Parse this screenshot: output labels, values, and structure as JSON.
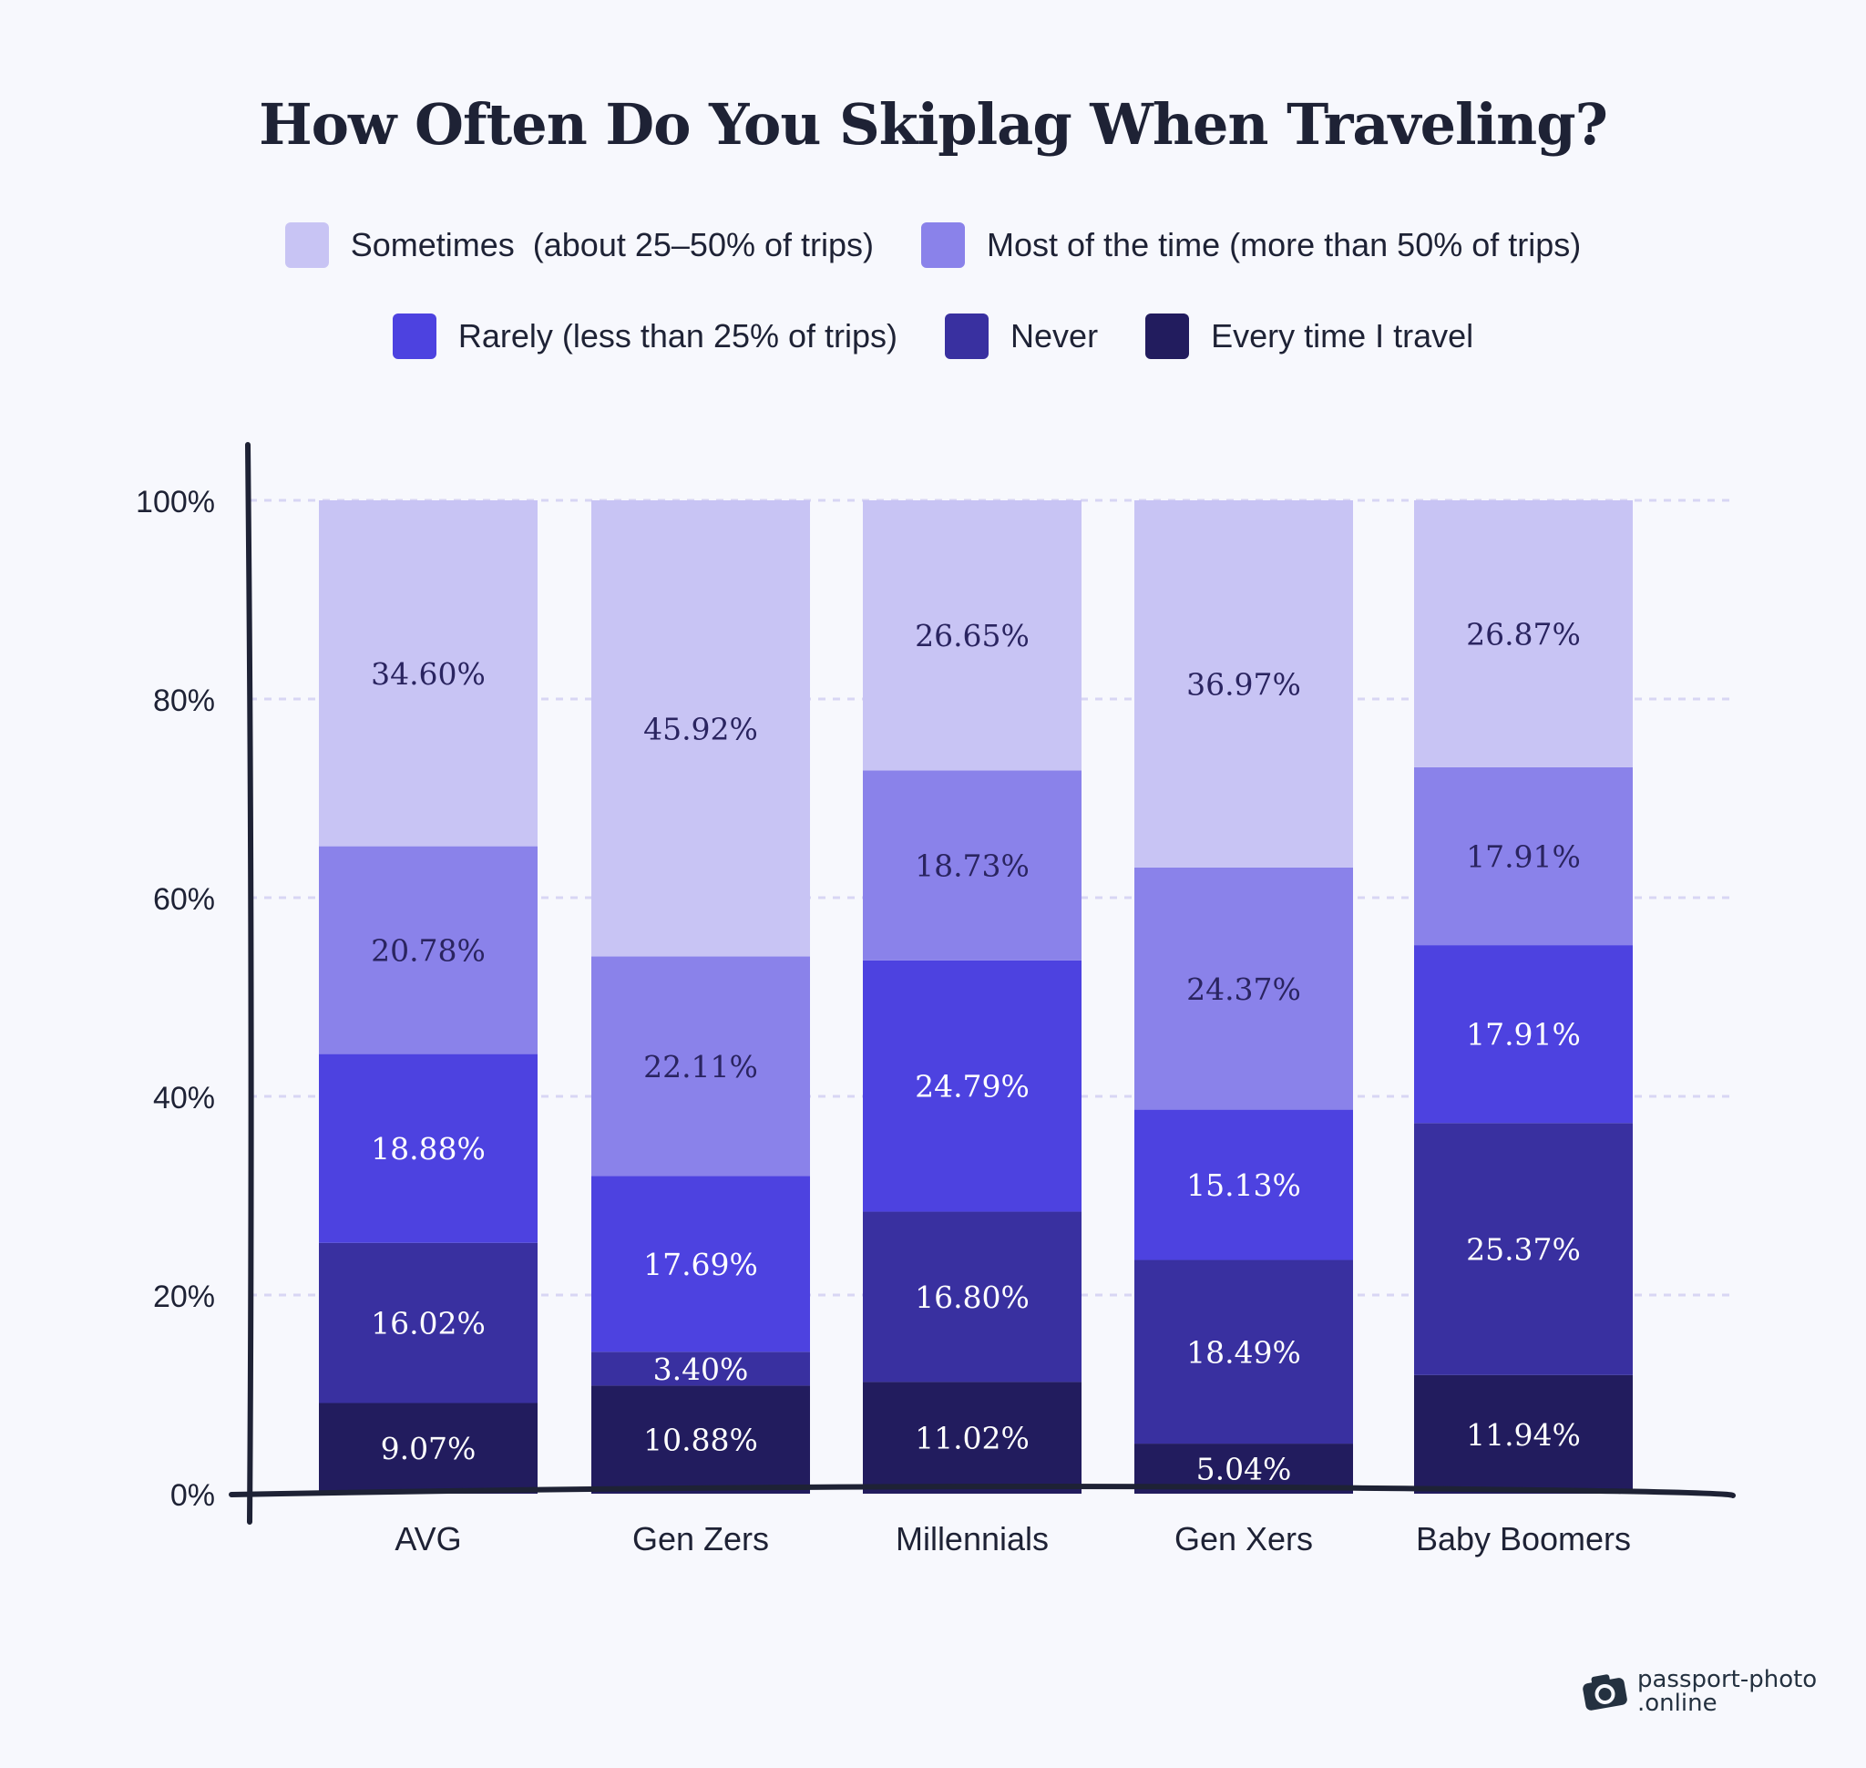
{
  "chart_data": {
    "type": "bar",
    "stacked": true,
    "title": "How Often Do You Skiplag When Traveling?",
    "categories": [
      "AVG",
      "Gen Zers",
      "Millennials",
      "Gen Xers",
      "Baby Boomers"
    ],
    "series": [
      {
        "name": "Every time I travel",
        "color": "#221c5e",
        "values": [
          9.07,
          10.88,
          11.02,
          5.04,
          11.94
        ]
      },
      {
        "name": "Never",
        "color": "#3930a0",
        "values": [
          16.02,
          3.4,
          16.8,
          18.49,
          25.37
        ]
      },
      {
        "name": "Rarely (less than 25% of trips)",
        "color": "#4d42e0",
        "values": [
          18.88,
          17.69,
          24.79,
          15.13,
          17.91
        ]
      },
      {
        "name": "Most of the time (more than 50% of trips)",
        "color": "#8a82ea",
        "values": [
          20.78,
          22.11,
          18.73,
          24.37,
          17.91
        ]
      },
      {
        "name": "Sometimes  (about 25–50% of trips)",
        "color": "#c8c4f4",
        "values": [
          34.6,
          45.92,
          26.65,
          36.97,
          26.87
        ]
      }
    ],
    "legend_order": [
      4,
      3,
      2,
      1,
      0
    ],
    "y_ticks": [
      "0%",
      "20%",
      "40%",
      "60%",
      "80%",
      "100%"
    ],
    "ylim": [
      0,
      100
    ],
    "grid": true,
    "legend_placement": "top"
  },
  "branding": {
    "logo_line1": "passport-photo",
    "logo_line2": ".online"
  }
}
